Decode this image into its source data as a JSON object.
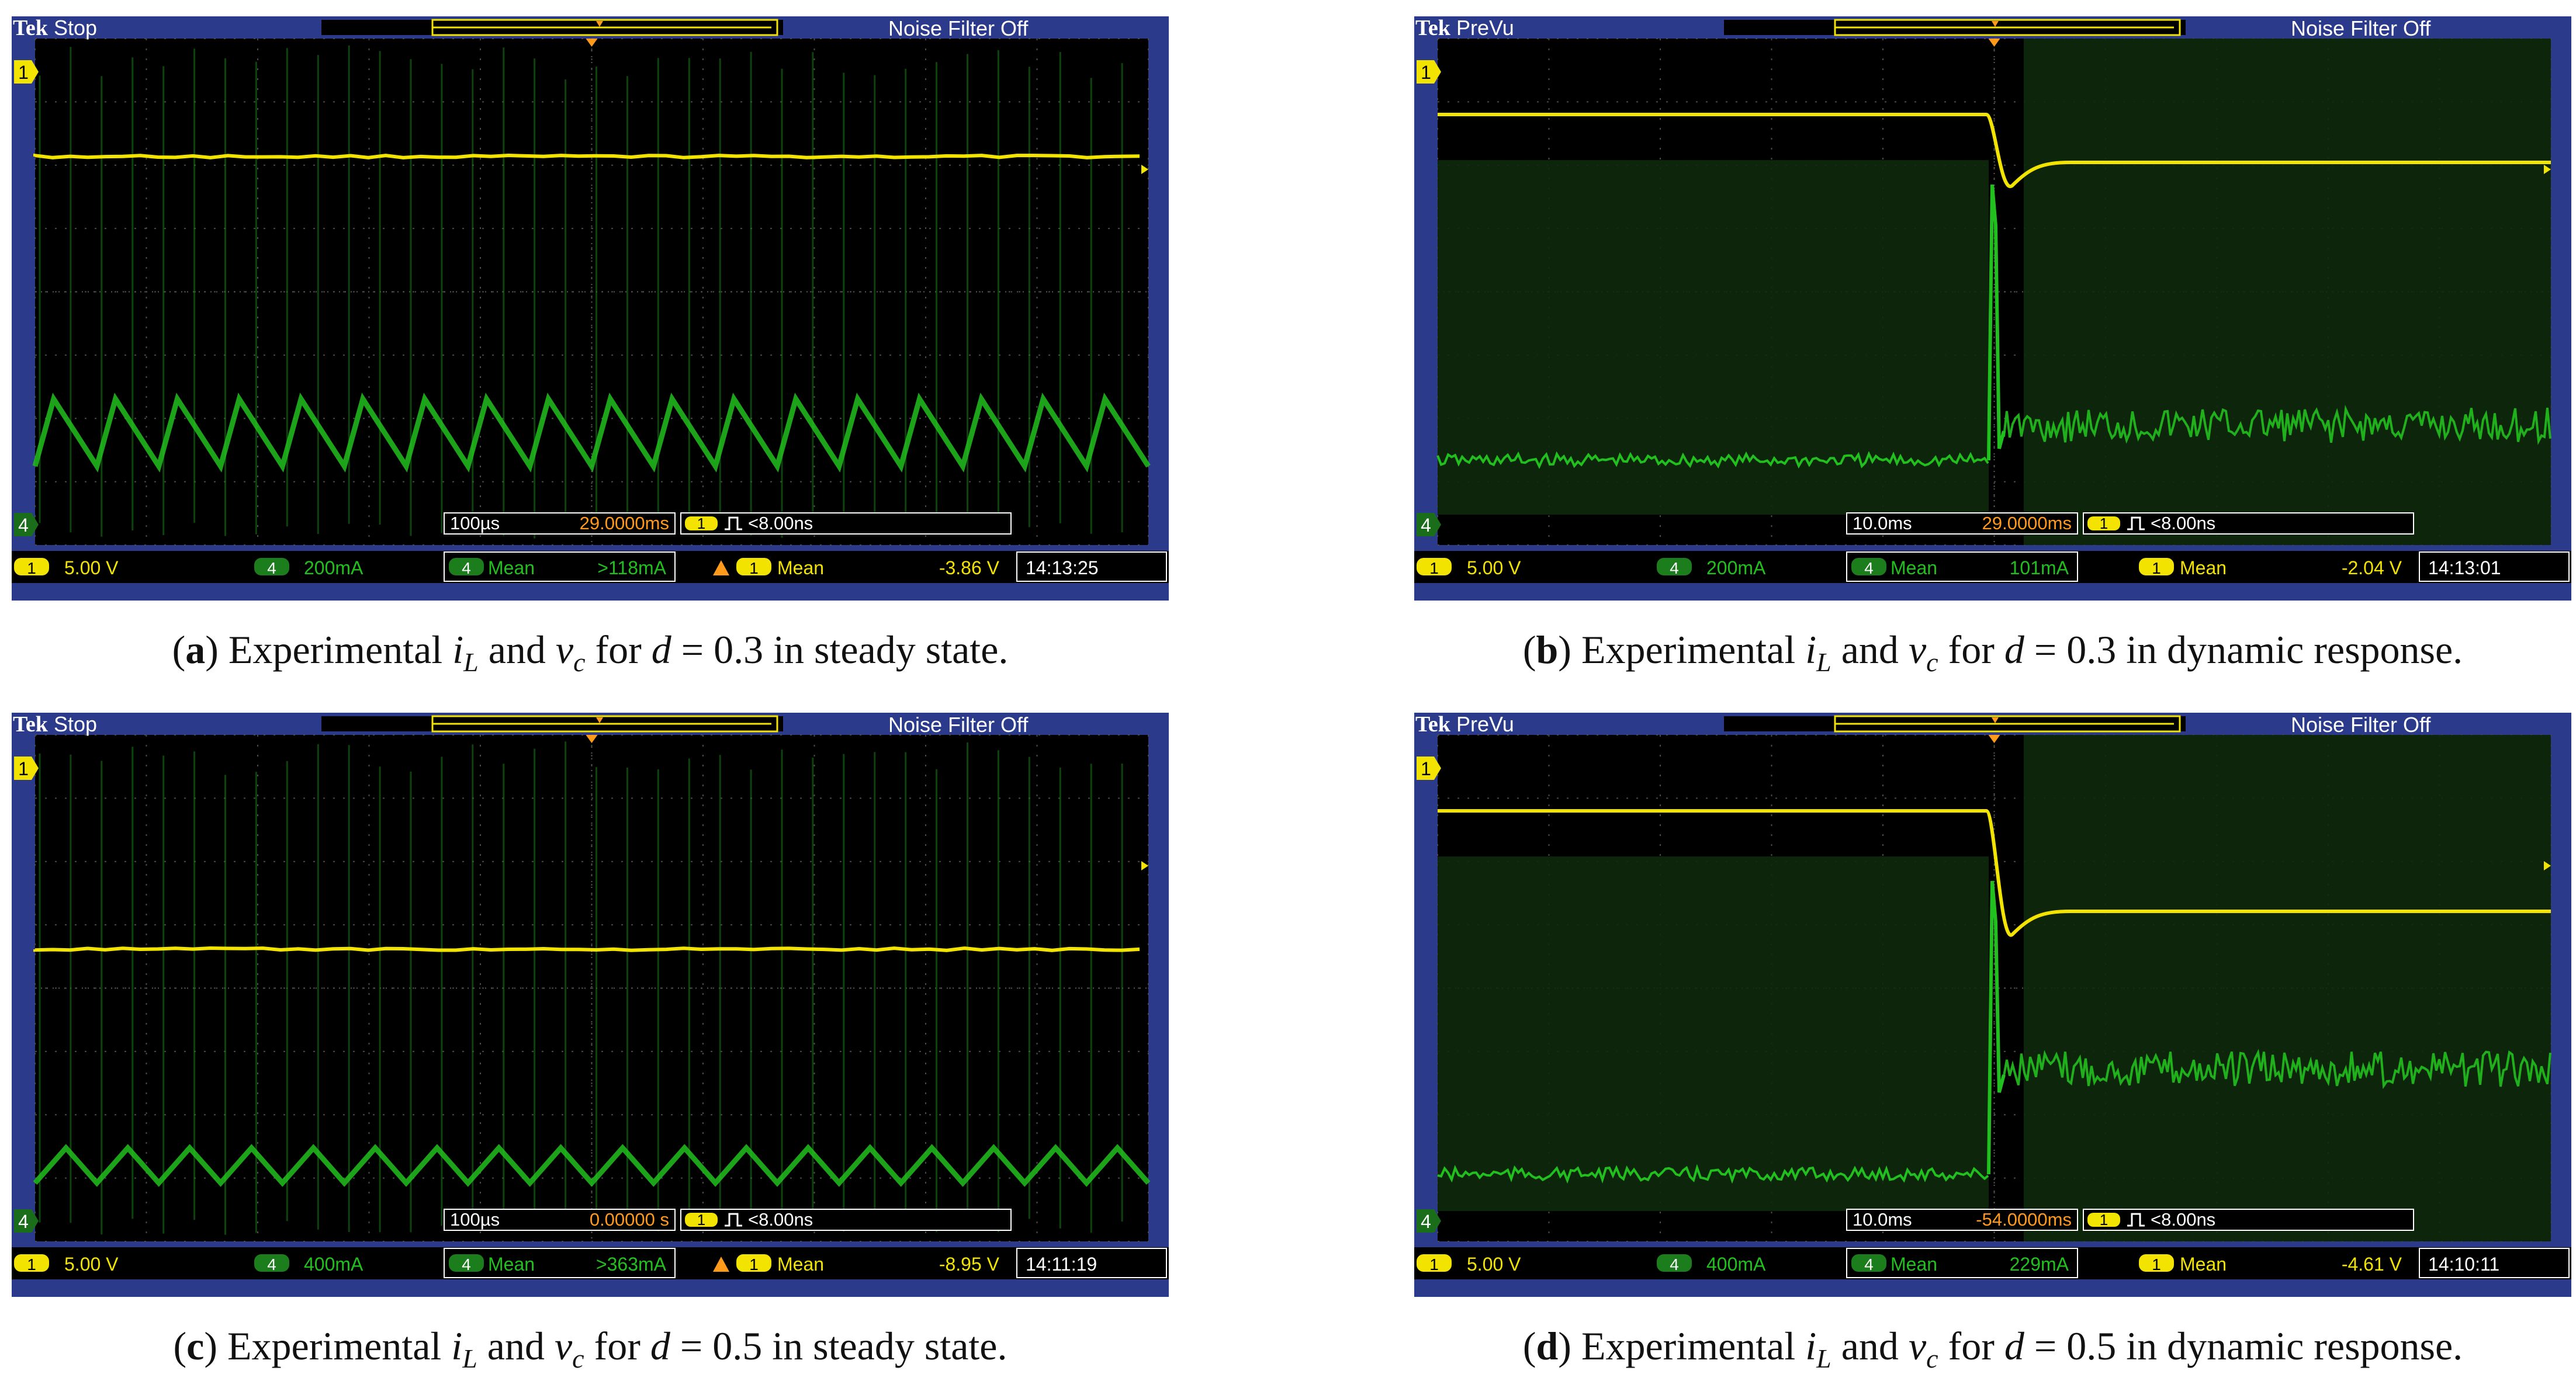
{
  "panels": [
    {
      "id": "a",
      "letter": "a",
      "caption_pre": "Experimental ",
      "caption_d": "0.3",
      "caption_post": " in steady state.",
      "brand": "Tek",
      "acq_state": "Stop",
      "noise_filter": "Noise Filter Off",
      "timebase": "100µs",
      "trigger_pos": "29.0000ms",
      "trigger_label": "<8.00ns",
      "ch1_scale": "5.00 V",
      "ch4_scale": "200mA",
      "meas4_label": "Mean",
      "meas4_value": ">118mA",
      "meas1_label": "Mean",
      "meas1_value": "-3.86 V",
      "time": "14:13:25",
      "ch1_marker": "1",
      "ch4_marker": "4",
      "colors": {
        "ch1": "#f2e400",
        "ch4": "#22c01e",
        "accent": "#ff9a1a",
        "frame": "#2c3a8c"
      }
    },
    {
      "id": "b",
      "letter": "b",
      "caption_pre": "Experimental ",
      "caption_d": "0.3",
      "caption_post": " in dynamic response.",
      "brand": "Tek",
      "acq_state": "PreVu",
      "noise_filter": "Noise Filter Off",
      "timebase": "10.0ms",
      "trigger_pos": "29.0000ms",
      "trigger_label": "<8.00ns",
      "ch1_scale": "5.00 V",
      "ch4_scale": "200mA",
      "meas4_label": "Mean",
      "meas4_value": "101mA",
      "meas1_label": "Mean",
      "meas1_value": "-2.04 V",
      "time": "14:13:01",
      "ch1_marker": "1",
      "ch4_marker": "4",
      "colors": {
        "ch1": "#f2e400",
        "ch4": "#22c01e",
        "accent": "#ff9a1a",
        "frame": "#2c3a8c"
      }
    },
    {
      "id": "c",
      "letter": "c",
      "caption_pre": "Experimental ",
      "caption_d": "0.5",
      "caption_post": " in steady state.",
      "brand": "Tek",
      "acq_state": "Stop",
      "noise_filter": "Noise Filter Off",
      "timebase": "100µs",
      "trigger_pos": "0.00000 s",
      "trigger_label": "<8.00ns",
      "ch1_scale": "5.00 V",
      "ch4_scale": "400mA",
      "meas4_label": "Mean",
      "meas4_value": ">363mA",
      "meas1_label": "Mean",
      "meas1_value": "-8.95 V",
      "time": "14:11:19",
      "ch1_marker": "1",
      "ch4_marker": "4",
      "colors": {
        "ch1": "#f2e400",
        "ch4": "#22c01e",
        "accent": "#ff9a1a",
        "frame": "#2c3a8c"
      }
    },
    {
      "id": "d",
      "letter": "d",
      "caption_pre": "Experimental ",
      "caption_d": "0.5",
      "caption_post": " in dynamic response.",
      "brand": "Tek",
      "acq_state": "PreVu",
      "noise_filter": "Noise Filter Off",
      "timebase": "10.0ms",
      "trigger_pos": "-54.0000ms",
      "trigger_label": "<8.00ns",
      "ch1_scale": "5.00 V",
      "ch4_scale": "400mA",
      "meas4_label": "Mean",
      "meas4_value": "229mA",
      "meas1_label": "Mean",
      "meas1_value": "-4.61 V",
      "time": "14:10:11",
      "ch1_marker": "1",
      "ch4_marker": "4",
      "colors": {
        "ch1": "#f2e400",
        "ch4": "#22c01e",
        "accent": "#ff9a1a",
        "frame": "#2c3a8c"
      }
    }
  ],
  "caption_common": {
    "i_sym": "i",
    "i_sub": "L",
    "and": " and ",
    "v_sym": "v",
    "v_sub": "c",
    "for": " for ",
    "d_sym": "d",
    "eq": " = "
  }
}
